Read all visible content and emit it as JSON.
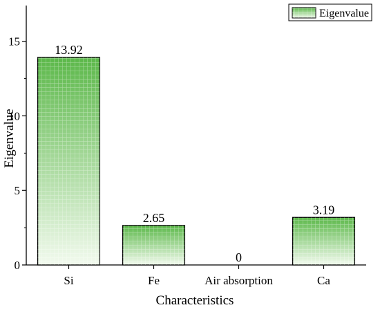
{
  "chart_data": {
    "type": "bar",
    "xlabel": "Characteristics",
    "ylabel": "Eigenvalue",
    "categories": [
      "Si",
      "Fe",
      "Air absorption",
      "Ca"
    ],
    "series": [
      {
        "name": "Eigenvalue",
        "values": [
          13.92,
          2.65,
          0,
          3.19
        ]
      }
    ],
    "data_labels": [
      "13.92",
      "2.65",
      "0",
      "3.19"
    ],
    "ylim": [
      0,
      17.4
    ],
    "yticks": [
      0,
      5,
      10,
      15
    ],
    "ytick_labels": [
      "0",
      "5",
      "10",
      "15"
    ],
    "legend": {
      "entries": [
        "Eigenvalue"
      ],
      "position": "top-right"
    },
    "grid": false,
    "colors": {
      "bar_top": "#5cb84a",
      "bar_bottom": "#f2faee",
      "bar_stroke": "#000000"
    }
  }
}
